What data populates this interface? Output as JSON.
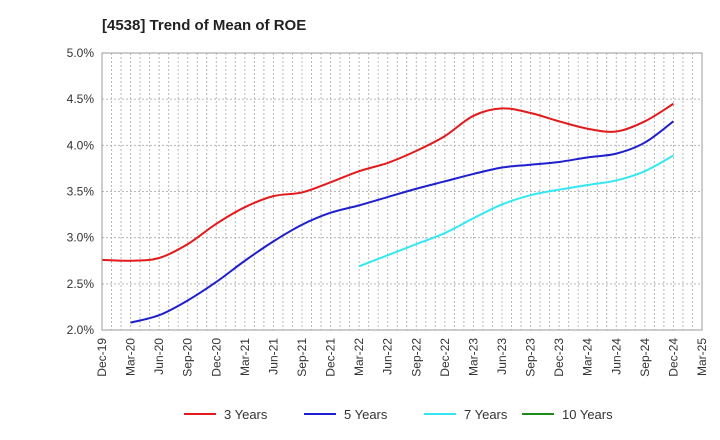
{
  "chart_data": {
    "type": "line",
    "title": "[4538]  Trend of Mean of ROE",
    "xlabel": "",
    "ylabel": "",
    "x_ticks": [
      "Dec-19",
      "Mar-20",
      "Jun-20",
      "Sep-20",
      "Dec-20",
      "Mar-21",
      "Jun-21",
      "Sep-21",
      "Dec-21",
      "Mar-22",
      "Jun-22",
      "Sep-22",
      "Dec-22",
      "Mar-23",
      "Jun-23",
      "Sep-23",
      "Dec-23",
      "Mar-24",
      "Jun-24",
      "Sep-24",
      "Dec-24",
      "Mar-25"
    ],
    "y_ticks": [
      "2.0%",
      "2.5%",
      "3.0%",
      "3.5%",
      "4.0%",
      "4.5%",
      "5.0%"
    ],
    "ylim": [
      2.0,
      5.0
    ],
    "grid": true,
    "legend_position": "bottom",
    "series": [
      {
        "name": "3 Years",
        "color": "#e31a1c",
        "values": [
          2.76,
          2.75,
          2.78,
          2.93,
          3.15,
          3.33,
          3.45,
          3.49,
          3.6,
          3.72,
          3.81,
          3.94,
          4.1,
          4.32,
          4.4,
          4.35,
          4.26,
          4.18,
          4.15,
          4.26,
          4.45,
          null
        ]
      },
      {
        "name": "5 Years",
        "color": "#1f1fcf",
        "values": [
          null,
          2.08,
          2.16,
          2.32,
          2.52,
          2.75,
          2.96,
          3.14,
          3.27,
          3.35,
          3.44,
          3.53,
          3.61,
          3.69,
          3.76,
          3.79,
          3.82,
          3.87,
          3.91,
          4.03,
          4.26,
          null
        ]
      },
      {
        "name": "7 Years",
        "color": "#33e8f2",
        "values": [
          null,
          null,
          null,
          null,
          null,
          null,
          null,
          null,
          null,
          2.69,
          2.81,
          2.93,
          3.05,
          3.21,
          3.36,
          3.46,
          3.52,
          3.57,
          3.62,
          3.72,
          3.89,
          null
        ]
      },
      {
        "name": "10 Years",
        "color": "#1a8a1a",
        "values": [
          null,
          null,
          null,
          null,
          null,
          null,
          null,
          null,
          null,
          null,
          null,
          null,
          null,
          null,
          null,
          null,
          null,
          null,
          null,
          null,
          null,
          null
        ]
      }
    ]
  }
}
